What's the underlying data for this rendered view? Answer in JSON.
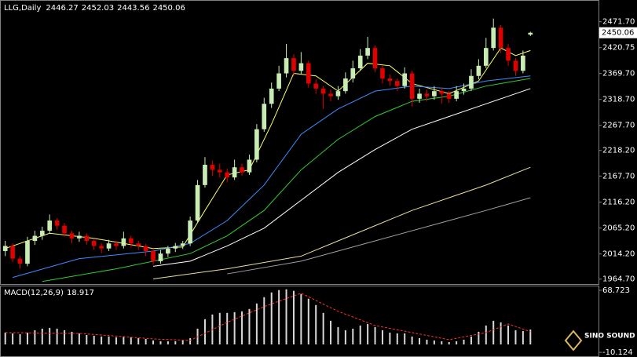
{
  "chart_data": [
    {
      "type": "candlestick",
      "title": "LLG,Daily",
      "open": [
        2020,
        2030,
        2005,
        1995,
        2040,
        2050,
        2060,
        2080,
        2070,
        2055,
        2045,
        2050,
        2040,
        2030,
        2025,
        2035,
        2030,
        2045,
        2035,
        2030,
        2020,
        2000,
        2015,
        2025,
        2030,
        2035,
        2080,
        2150,
        2190,
        2180,
        2175,
        2165,
        2185,
        2175,
        2200,
        2260,
        2310,
        2340,
        2370,
        2400,
        2375,
        2390,
        2350,
        2340,
        2330,
        2325,
        2335,
        2360,
        2380,
        2405,
        2420,
        2380,
        2360,
        2355,
        2345,
        2370,
        2320,
        2330,
        2325,
        2335,
        2330,
        2320,
        2335,
        2340,
        2365,
        2385,
        2420,
        2460,
        2420,
        2395,
        2375,
        2446.27
      ],
      "high": [
        2040,
        2035,
        2010,
        2048,
        2060,
        2068,
        2092,
        2085,
        2075,
        2060,
        2058,
        2055,
        2045,
        2036,
        2042,
        2040,
        2058,
        2050,
        2040,
        2034,
        2025,
        2022,
        2030,
        2036,
        2040,
        2088,
        2160,
        2205,
        2198,
        2192,
        2182,
        2200,
        2192,
        2210,
        2270,
        2322,
        2352,
        2385,
        2428,
        2408,
        2412,
        2395,
        2358,
        2345,
        2338,
        2345,
        2372,
        2395,
        2418,
        2442,
        2425,
        2385,
        2368,
        2360,
        2382,
        2375,
        2340,
        2338,
        2345,
        2342,
        2335,
        2345,
        2350,
        2378,
        2398,
        2440,
        2478,
        2465,
        2428,
        2400,
        2415,
        2452.03
      ],
      "low": [
        2010,
        1998,
        1985,
        1990,
        2032,
        2042,
        2055,
        2062,
        2048,
        2035,
        2038,
        2032,
        2022,
        2016,
        2020,
        2022,
        2025,
        2028,
        2022,
        2010,
        1993,
        1995,
        2008,
        2018,
        2024,
        2030,
        2075,
        2145,
        2168,
        2165,
        2155,
        2160,
        2168,
        2170,
        2195,
        2255,
        2302,
        2335,
        2362,
        2365,
        2368,
        2342,
        2330,
        2300,
        2315,
        2318,
        2330,
        2352,
        2375,
        2398,
        2372,
        2350,
        2345,
        2335,
        2340,
        2305,
        2312,
        2315,
        2318,
        2310,
        2312,
        2315,
        2328,
        2335,
        2358,
        2380,
        2415,
        2410,
        2385,
        2365,
        2370,
        2443.56
      ],
      "close": [
        2030,
        2005,
        1995,
        2040,
        2050,
        2060,
        2080,
        2070,
        2055,
        2045,
        2050,
        2040,
        2030,
        2025,
        2035,
        2030,
        2045,
        2035,
        2030,
        2020,
        2000,
        2015,
        2025,
        2030,
        2035,
        2080,
        2150,
        2190,
        2180,
        2175,
        2165,
        2185,
        2175,
        2200,
        2260,
        2310,
        2340,
        2370,
        2400,
        2375,
        2390,
        2350,
        2340,
        2330,
        2325,
        2335,
        2360,
        2380,
        2405,
        2420,
        2380,
        2360,
        2355,
        2345,
        2370,
        2320,
        2330,
        2325,
        2335,
        2330,
        2320,
        2335,
        2340,
        2365,
        2385,
        2420,
        2460,
        2420,
        2395,
        2375,
        2405,
        2450.06
      ],
      "up_color": "#c8ecb4",
      "down_color": "#e00000",
      "series": [
        {
          "color": "#ffff66",
          "x": [
            0,
            6,
            12,
            20,
            24,
            27,
            30,
            33,
            36,
            39,
            42,
            45,
            49,
            52,
            55,
            60,
            64,
            67,
            69,
            71
          ],
          "values": [
            2025,
            2055,
            2045,
            2025,
            2028,
            2100,
            2170,
            2180,
            2270,
            2370,
            2365,
            2335,
            2390,
            2385,
            2350,
            2330,
            2355,
            2420,
            2405,
            2415
          ]
        },
        {
          "color": "#3c8cff",
          "x": [
            1,
            10,
            20,
            25,
            30,
            35,
            40,
            45,
            50,
            55,
            60,
            65,
            71
          ],
          "values": [
            1968,
            2005,
            2020,
            2035,
            2080,
            2150,
            2250,
            2300,
            2335,
            2345,
            2340,
            2355,
            2365
          ]
        },
        {
          "color": "#33cc33",
          "x": [
            5,
            15,
            25,
            30,
            35,
            40,
            45,
            50,
            55,
            60,
            65,
            71
          ],
          "values": [
            1960,
            1985,
            2015,
            2050,
            2100,
            2180,
            2240,
            2285,
            2315,
            2325,
            2345,
            2360
          ]
        },
        {
          "color": "#ffffff",
          "x": [
            20,
            25,
            30,
            35,
            40,
            45,
            50,
            55,
            60,
            65,
            71
          ],
          "values": [
            1990,
            2000,
            2030,
            2065,
            2120,
            2175,
            2220,
            2260,
            2285,
            2310,
            2340
          ]
        },
        {
          "color": "#e8e0a0",
          "x": [
            20,
            30,
            40,
            45,
            50,
            55,
            60,
            65,
            71
          ],
          "values": [
            1965,
            1985,
            2010,
            2040,
            2070,
            2100,
            2125,
            2150,
            2185
          ]
        },
        {
          "color": "#a0a0a0",
          "x": [
            30,
            40,
            50,
            60,
            65,
            71
          ],
          "values": [
            1975,
            2000,
            2040,
            2080,
            2100,
            2125
          ]
        }
      ],
      "ylim": [
        1955,
        2513
      ],
      "yticks": [
        {
          "value": 2471.7,
          "label": "2471.70"
        },
        {
          "value": 2420.75,
          "label": "2420.75"
        },
        {
          "value": 2369.7,
          "label": "2369.70"
        },
        {
          "value": 2318.7,
          "label": "2318.70"
        },
        {
          "value": 2267.7,
          "label": "2267.70"
        },
        {
          "value": 2218.2,
          "label": "2218.20"
        },
        {
          "value": 2167.7,
          "label": "2167.70"
        },
        {
          "value": 2116.2,
          "label": "2116.20"
        },
        {
          "value": 2065.2,
          "label": "2065.20"
        },
        {
          "value": 2014.2,
          "label": "2014.20"
        },
        {
          "value": 1964.7,
          "label": "1964.70"
        }
      ]
    },
    {
      "type": "macd",
      "title": "MACD(12,26,9)",
      "values": [
        15,
        14,
        13,
        15,
        18,
        20,
        21,
        20,
        18,
        16,
        14,
        12,
        11,
        10,
        10,
        9,
        10,
        9,
        8,
        7,
        5,
        4,
        4,
        4,
        5,
        8,
        20,
        32,
        38,
        40,
        40,
        41,
        42,
        45,
        52,
        60,
        66,
        69,
        70,
        68,
        64,
        58,
        50,
        40,
        30,
        22,
        18,
        20,
        24,
        26,
        22,
        18,
        15,
        14,
        14,
        10,
        8,
        6,
        5,
        4,
        3,
        4,
        6,
        10,
        16,
        24,
        30,
        28,
        24,
        18,
        17,
        18.917
      ],
      "color": "#d8d8d8",
      "signal": {
        "color": "#ff3030",
        "x": [
          0,
          10,
          20,
          25,
          30,
          35,
          40,
          45,
          50,
          55,
          60,
          65,
          68,
          71
        ],
        "values": [
          15,
          14,
          7,
          5,
          28,
          48,
          65,
          42,
          24,
          15,
          6,
          15,
          26,
          16.151
        ]
      },
      "ylim": [
        -15,
        73.7
      ],
      "yticks": [
        68.723,
        -10.124
      ]
    }
  ],
  "logo": "SINO SOUND"
}
